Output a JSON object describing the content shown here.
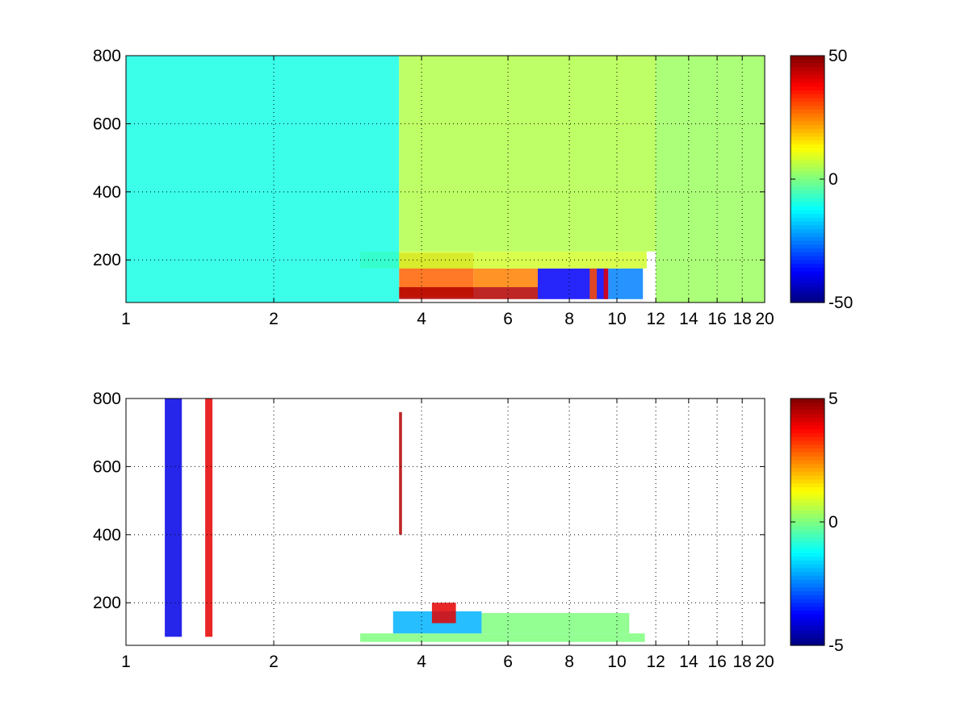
{
  "figure": {
    "background": "#ffffff"
  },
  "chart_data": [
    {
      "type": "heatmap",
      "title": "",
      "xlabel": "",
      "ylabel": "",
      "x_scale": "log",
      "xlim": [
        1,
        20
      ],
      "ylim": [
        75,
        800
      ],
      "x_ticks": [
        1,
        2,
        4,
        6,
        8,
        10,
        12,
        14,
        16,
        18,
        20
      ],
      "x_tick_labels": [
        "1",
        "2",
        "4",
        "6",
        "8",
        "10",
        "12",
        "14",
        "16",
        "18",
        "20"
      ],
      "y_ticks": [
        200,
        400,
        600,
        800
      ],
      "y_tick_labels": [
        "200",
        "400",
        "600",
        "800"
      ],
      "grid": true,
      "colormap": "jet",
      "clim": [
        -50,
        50
      ],
      "colorbar_ticks": [
        50,
        0,
        -50
      ],
      "colorbar_tick_labels": [
        "50",
        "0",
        "-50"
      ],
      "regions": [
        {
          "x": [
            3.6,
            5.1
          ],
          "y": [
            90,
            220
          ],
          "value": 28
        },
        {
          "x": [
            3.6,
            6.9
          ],
          "y": [
            85,
            120
          ],
          "value": 45
        },
        {
          "x": [
            5.1,
            6.9
          ],
          "y": [
            120,
            175
          ],
          "value": 25
        },
        {
          "x": [
            6.9,
            9.6
          ],
          "y": [
            85,
            175
          ],
          "value": -38
        },
        {
          "x": [
            9.6,
            11.3
          ],
          "y": [
            85,
            175
          ],
          "value": -25
        },
        {
          "x": [
            8.8,
            9.1
          ],
          "y": [
            85,
            175
          ],
          "value": 30
        },
        {
          "x": [
            9.4,
            9.6
          ],
          "y": [
            85,
            175
          ],
          "value": 40
        },
        {
          "x": [
            3.0,
            11.5
          ],
          "y": [
            175,
            225
          ],
          "value": 8
        },
        {
          "x": [
            1.0,
            3.6
          ],
          "y": [
            75,
            800
          ],
          "value": -10
        },
        {
          "x": [
            3.6,
            12.0
          ],
          "y": [
            225,
            800
          ],
          "value": 5
        },
        {
          "x": [
            12.0,
            20.0
          ],
          "y": [
            75,
            800
          ],
          "value": 3
        }
      ]
    },
    {
      "type": "heatmap",
      "title": "",
      "xlabel": "",
      "ylabel": "",
      "x_scale": "log",
      "xlim": [
        1,
        20
      ],
      "ylim": [
        75,
        800
      ],
      "x_ticks": [
        1,
        2,
        4,
        6,
        8,
        10,
        12,
        14,
        16,
        18,
        20
      ],
      "x_tick_labels": [
        "1",
        "2",
        "4",
        "6",
        "8",
        "10",
        "12",
        "14",
        "16",
        "18",
        "20"
      ],
      "y_ticks": [
        200,
        400,
        600,
        800
      ],
      "y_tick_labels": [
        "200",
        "400",
        "600",
        "800"
      ],
      "grid": true,
      "colormap": "jet",
      "clim": [
        -5,
        5
      ],
      "colorbar_ticks": [
        5,
        0,
        -5
      ],
      "colorbar_tick_labels": [
        "5",
        "0",
        "-5"
      ],
      "regions": [
        {
          "x": [
            3.0,
            11.4
          ],
          "y": [
            85,
            110
          ],
          "value": 0
        },
        {
          "x": [
            5.3,
            10.6
          ],
          "y": [
            110,
            170
          ],
          "value": 0
        },
        {
          "x": [
            3.5,
            5.3
          ],
          "y": [
            110,
            175
          ],
          "value": -2
        },
        {
          "x": [
            4.2,
            4.7
          ],
          "y": [
            140,
            200
          ],
          "value": 4
        },
        {
          "x": [
            1.2,
            1.3
          ],
          "y": [
            100,
            800
          ],
          "value": -4
        },
        {
          "x": [
            1.45,
            1.5
          ],
          "y": [
            100,
            800
          ],
          "value": 4
        },
        {
          "x": [
            3.6,
            3.65
          ],
          "y": [
            400,
            760
          ],
          "value": 4.5
        }
      ]
    }
  ]
}
